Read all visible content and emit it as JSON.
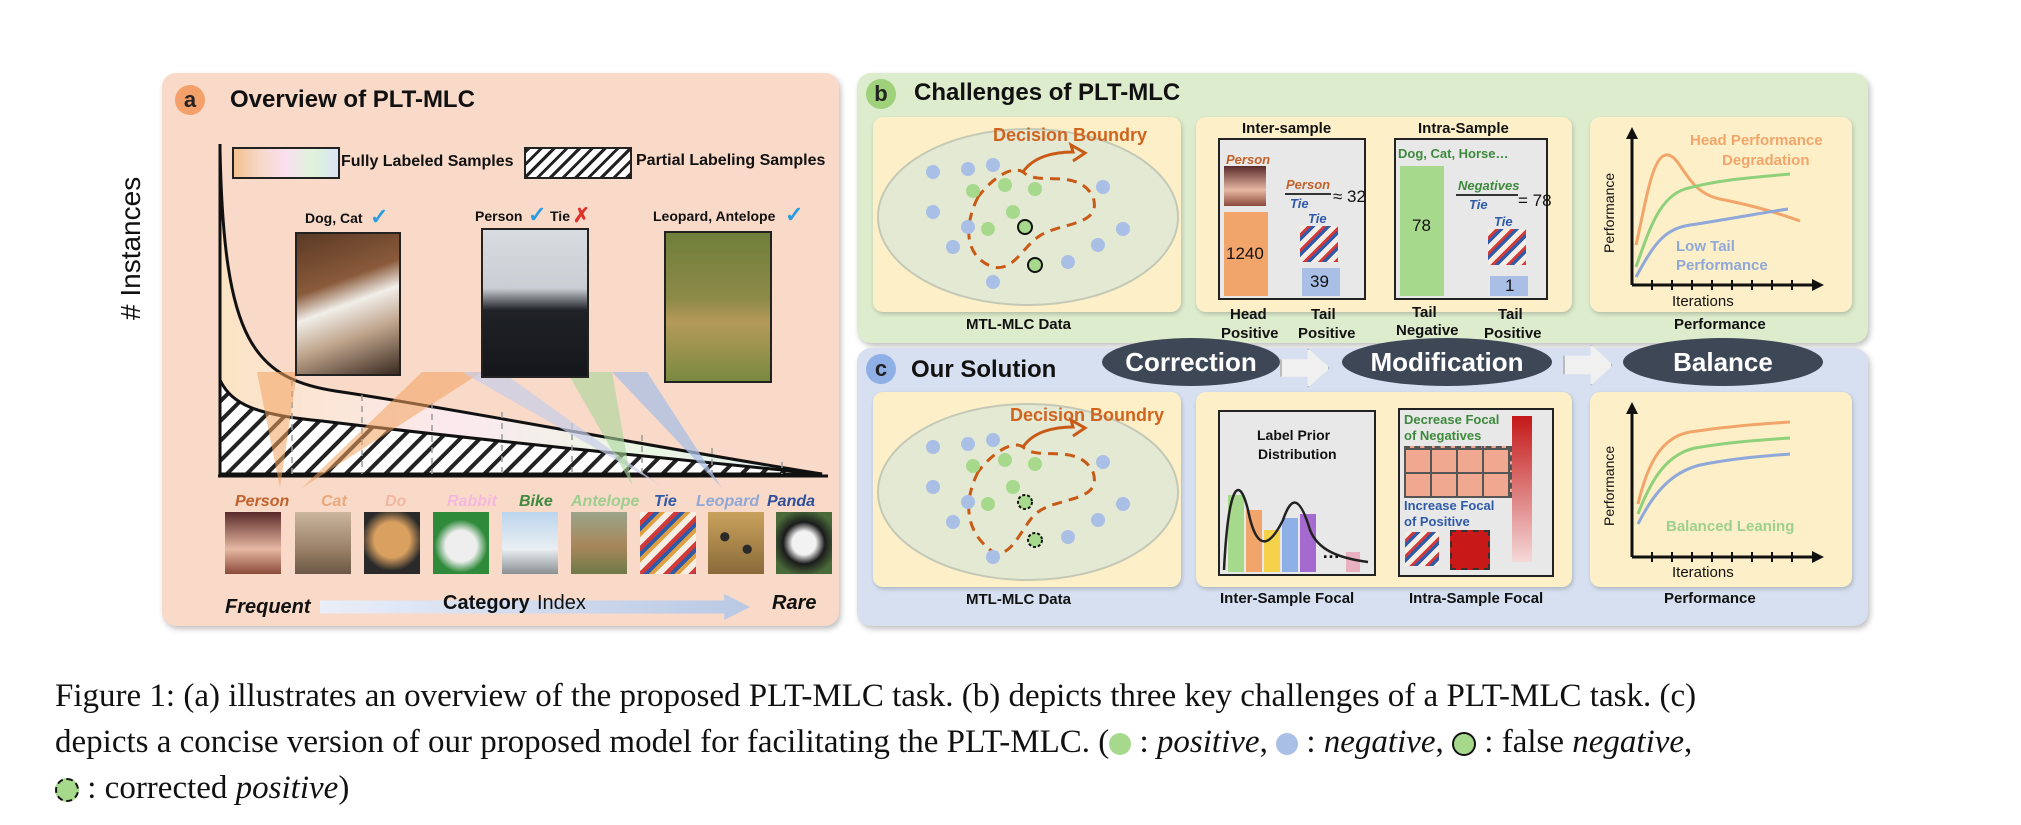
{
  "panel_a": {
    "badge": "a",
    "title": "Overview of PLT-MLC",
    "legend_full": "Fully Labeled Samples",
    "legend_partial": "Partial Labeling Samples",
    "y_axis": "# Instances",
    "photo1_label": "Dog, Cat",
    "photo2_label": "Person",
    "photo2_label2": "Tie",
    "photo3_label": "Leopard, Antelope",
    "categories": [
      "Person",
      "Cat",
      "Do",
      "Rabbit",
      "Bike",
      "Antelope",
      "Tie",
      "Leopard",
      "Panda"
    ],
    "category_colors": [
      "#c0622b",
      "#e8a87c",
      "#f0b8a0",
      "#f5b8dd",
      "#3d8a3d",
      "#9dcf8e",
      "#2f5aa8",
      "#8fa8d8",
      "#2f4f9a"
    ],
    "axis_left": "Frequent",
    "axis_mid_bold": "Category",
    "axis_mid": "Index",
    "axis_right": "Rare"
  },
  "panel_b": {
    "badge": "b",
    "title": "Challenges of PLT-MLC",
    "boundary": "Decision Boundry",
    "data_label": "MTL-MLC Data",
    "inter_title": "Inter-sample",
    "inter_person": "Person",
    "inter_ratio_num": "Person",
    "inter_ratio_den": "Tie",
    "inter_ratio_val": "≈ 32",
    "inter_tie": "Tie",
    "inter_bar1": "1240",
    "inter_bar2": "39",
    "inter_x1": "Head",
    "inter_x1b": "Positive",
    "inter_x2": "Tail",
    "inter_x2b": "Positive",
    "intra_title": "Intra-Sample",
    "intra_labels": "Dog, Cat, Horse…",
    "intra_ratio_num": "Negatives",
    "intra_ratio_den": "Tie",
    "intra_ratio_val": "= 78",
    "intra_tie": "Tie",
    "intra_bar1": "78",
    "intra_bar2": "1",
    "intra_x1": "Tail",
    "intra_x1b": "Negative",
    "intra_x2": "Tail",
    "intra_x2b": "Positive",
    "perf_y": "Performance",
    "perf_x": "Iterations",
    "perf_head": "Head Performance",
    "perf_head2": "Degradation",
    "perf_tail": "Low Tail",
    "perf_tail2": "Performance",
    "perf_label": "Performance"
  },
  "panel_c": {
    "badge": "c",
    "title": "Our Solution",
    "pill1": "Correction",
    "pill2": "Modification",
    "pill3": "Balance",
    "boundary": "Decision Boundry",
    "data_label": "MTL-MLC Data",
    "prior_title1": "Label Prior",
    "prior_title2": "Distribution",
    "inter_label": "Inter-Sample Focal",
    "dec1": "Decrease Focal",
    "dec2": "of Negatives",
    "inc1": "Increase Focal",
    "inc2": "of Positive",
    "intra_label": "Intra-Sample Focal",
    "perf_y": "Performance",
    "perf_x": "Iterations",
    "balanced": "Balanced Leaning",
    "perf_label": "Performance"
  },
  "caption": {
    "line1": "Figure 1: (a) illustrates an overview of the proposed PLT-MLC task. (b) depicts three key challenges of a PLT-MLC task. (c)",
    "line2a": "depicts a concise version of our proposed model for facilitating the PLT-MLC. (",
    "t_pos": " : ",
    "pos": "positive",
    "sep1": ", ",
    "t_neg": " : ",
    "neg": "negative",
    "sep2": ", ",
    "t_false": " : false ",
    "false_neg": "negative",
    "sep3": ",",
    "t_corr": " : corrected ",
    "corr_pos": "positive",
    "end": ")"
  },
  "colors": {
    "panel_a_bg": "#f9d9c8",
    "panel_b_bg": "#ddeccd",
    "panel_c_bg": "#d6e0f0",
    "card_bg": "#fdf0c8",
    "positive": "#a7d98c",
    "negative": "#a9bfe6",
    "orange_text": "#d0641e",
    "green_text": "#3d8a3d",
    "blue_text": "#2f5aa8"
  }
}
